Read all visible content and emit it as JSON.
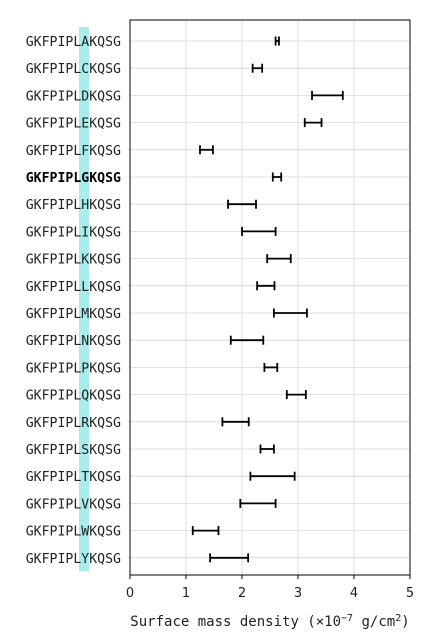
{
  "chart_data": {
    "type": "errorbar",
    "orientation": "horizontal",
    "categories": [
      "GKFPIPLAKQSG",
      "GKFPIPLCKQSG",
      "GKFPIPLDKQSG",
      "GKFPIPLEKQSG",
      "GKFPIPLFKQSG",
      "GKFPIPLGKQSG",
      "GKFPIPLHKQSG",
      "GKFPIPLIKQSG",
      "GKFPIPLKKQSG",
      "GKFPIPLLKQSG",
      "GKFPIPLMKQSG",
      "GKFPIPLNKQSG",
      "GKFPIPLPKQSG",
      "GKFPIPLQKQSG",
      "GKFPIPLRKQSG",
      "GKFPIPLSKQSG",
      "GKFPIPLTKQSG",
      "GKFPIPLVKQSG",
      "GKFPIPLWKQSG",
      "GKFPIPLYKQSG"
    ],
    "intervals": [
      [
        2.6,
        2.66
      ],
      [
        2.19,
        2.36
      ],
      [
        3.25,
        3.8
      ],
      [
        3.12,
        3.42
      ],
      [
        1.25,
        1.48
      ],
      [
        2.55,
        2.7
      ],
      [
        1.75,
        2.25
      ],
      [
        2.0,
        2.6
      ],
      [
        2.45,
        2.87
      ],
      [
        2.27,
        2.58
      ],
      [
        2.57,
        3.16
      ],
      [
        1.8,
        2.38
      ],
      [
        2.4,
        2.63
      ],
      [
        2.8,
        3.14
      ],
      [
        1.65,
        2.12
      ],
      [
        2.33,
        2.57
      ],
      [
        2.15,
        2.94
      ],
      [
        1.97,
        2.6
      ],
      [
        1.12,
        1.58
      ],
      [
        1.43,
        2.11
      ]
    ],
    "highlight_bold": "GKFPIPLGKQSG",
    "highlight_color": "#a8ecec",
    "xlabel": "Surface mass density (×10",
    "xlabel_exp": "−7",
    "xlabel_unit": " g/cm",
    "xlabel_unit_exp": "2",
    "xlabel_close": ")",
    "xlim": [
      0,
      5
    ],
    "xticks": [
      "0",
      "1",
      "2",
      "3",
      "4",
      "5"
    ],
    "grid": true
  }
}
